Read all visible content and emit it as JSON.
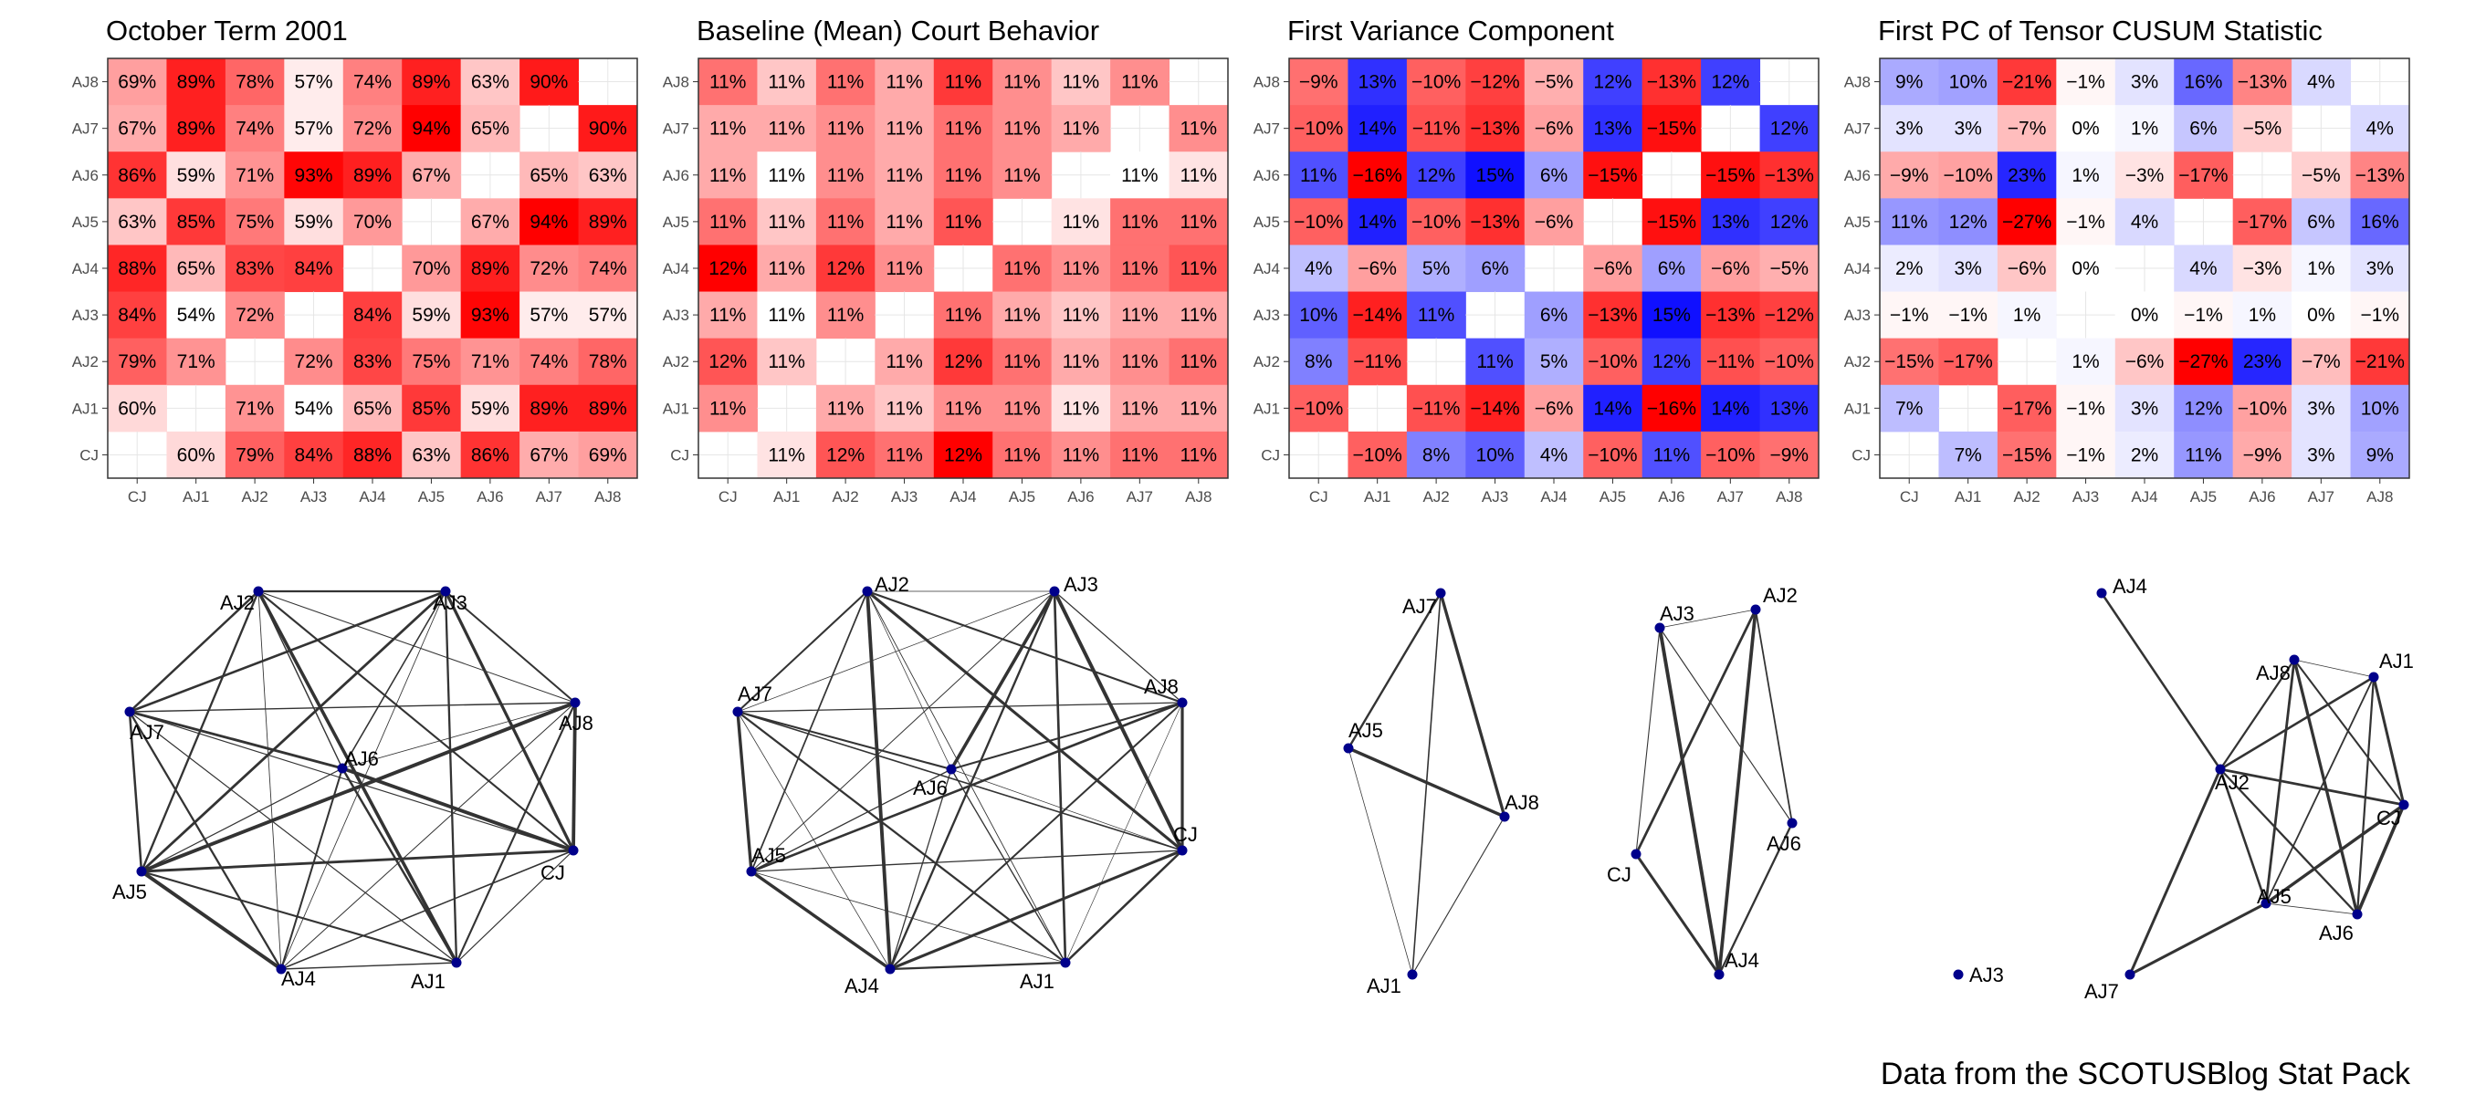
{
  "caption": "Data from the SCOTUSBlog Stat Pack",
  "colors": {
    "positive_high": "#ff0000",
    "negative_high": "#0000ff",
    "neutral": "#ffffff",
    "node": "#00008b",
    "edge": "#333333",
    "panel_border": "#333333",
    "grid": "#e6e6e6"
  },
  "chart_data": [
    {
      "type": "heatmap",
      "title": "October Term 2001",
      "color_scale": "white-red",
      "x_labels": [
        "CJ",
        "AJ1",
        "AJ2",
        "AJ3",
        "AJ4",
        "AJ5",
        "AJ6",
        "AJ7",
        "AJ8"
      ],
      "y_labels": [
        "AJ8",
        "AJ7",
        "AJ6",
        "AJ5",
        "AJ4",
        "AJ3",
        "AJ2",
        "AJ1",
        "CJ"
      ],
      "values": [
        [
          69,
          89,
          78,
          57,
          74,
          89,
          63,
          90,
          null
        ],
        [
          67,
          89,
          74,
          57,
          72,
          94,
          65,
          null,
          90
        ],
        [
          86,
          59,
          71,
          93,
          89,
          67,
          null,
          65,
          63
        ],
        [
          63,
          85,
          75,
          59,
          70,
          null,
          67,
          94,
          89
        ],
        [
          88,
          65,
          83,
          84,
          null,
          70,
          89,
          72,
          74
        ],
        [
          84,
          54,
          72,
          null,
          84,
          59,
          93,
          57,
          57
        ],
        [
          79,
          71,
          null,
          72,
          83,
          75,
          71,
          74,
          78
        ],
        [
          60,
          null,
          71,
          54,
          65,
          85,
          59,
          89,
          89
        ],
        [
          null,
          60,
          79,
          84,
          88,
          63,
          86,
          67,
          69
        ]
      ],
      "labels": [
        [
          "69%",
          "89%",
          "78%",
          "57%",
          "74%",
          "89%",
          "63%",
          "90%",
          ""
        ],
        [
          "67%",
          "89%",
          "74%",
          "57%",
          "72%",
          "94%",
          "65%",
          "",
          "90%"
        ],
        [
          "86%",
          "59%",
          "71%",
          "93%",
          "89%",
          "67%",
          "",
          "65%",
          "63%"
        ],
        [
          "63%",
          "85%",
          "75%",
          "59%",
          "70%",
          "",
          "67%",
          "94%",
          "89%"
        ],
        [
          "88%",
          "65%",
          "83%",
          "84%",
          "",
          "70%",
          "89%",
          "72%",
          "74%"
        ],
        [
          "84%",
          "54%",
          "72%",
          "",
          "84%",
          "59%",
          "93%",
          "57%",
          "57%"
        ],
        [
          "79%",
          "71%",
          "",
          "72%",
          "83%",
          "75%",
          "71%",
          "74%",
          "78%"
        ],
        [
          "60%",
          "",
          "71%",
          "54%",
          "65%",
          "85%",
          "59%",
          "89%",
          "89%"
        ],
        [
          "",
          "60%",
          "79%",
          "84%",
          "88%",
          "63%",
          "86%",
          "67%",
          "69%"
        ]
      ]
    },
    {
      "type": "heatmap",
      "title": "Baseline (Mean) Court Behavior",
      "color_scale": "white-red",
      "x_labels": [
        "CJ",
        "AJ1",
        "AJ2",
        "AJ3",
        "AJ4",
        "AJ5",
        "AJ6",
        "AJ7",
        "AJ8"
      ],
      "y_labels": [
        "AJ8",
        "AJ7",
        "AJ6",
        "AJ5",
        "AJ4",
        "AJ3",
        "AJ2",
        "AJ1",
        "CJ"
      ],
      "values": [
        [
          0.6,
          0.3,
          0.6,
          0.4,
          0.8,
          0.5,
          0.3,
          0.5,
          null
        ],
        [
          0.4,
          0.4,
          0.5,
          0.4,
          0.6,
          0.5,
          0.4,
          null,
          0.5
        ],
        [
          0.4,
          0.1,
          0.5,
          0.4,
          0.6,
          0.5,
          null,
          0.1,
          0.2
        ],
        [
          0.6,
          0.3,
          0.6,
          0.4,
          0.7,
          null,
          0.2,
          0.6,
          0.6
        ],
        [
          1.0,
          0.4,
          0.8,
          0.5,
          null,
          0.6,
          0.5,
          0.6,
          0.7
        ],
        [
          0.4,
          0.1,
          0.5,
          null,
          0.6,
          0.4,
          0.3,
          0.4,
          0.4
        ],
        [
          0.7,
          0.3,
          null,
          0.4,
          0.8,
          0.6,
          0.4,
          0.5,
          0.6
        ],
        [
          0.5,
          null,
          0.4,
          0.3,
          0.5,
          0.5,
          0.2,
          0.4,
          0.4
        ],
        [
          null,
          0.2,
          0.7,
          0.6,
          1.0,
          0.6,
          0.5,
          0.6,
          0.6
        ]
      ],
      "labels": [
        [
          "11%",
          "11%",
          "11%",
          "11%",
          "11%",
          "11%",
          "11%",
          "11%",
          ""
        ],
        [
          "11%",
          "11%",
          "11%",
          "11%",
          "11%",
          "11%",
          "11%",
          "",
          "11%"
        ],
        [
          "11%",
          "11%",
          "11%",
          "11%",
          "11%",
          "11%",
          "",
          "11%",
          "11%"
        ],
        [
          "11%",
          "11%",
          "11%",
          "11%",
          "11%",
          "",
          "11%",
          "11%",
          "11%"
        ],
        [
          "12%",
          "11%",
          "12%",
          "11%",
          "",
          "11%",
          "11%",
          "11%",
          "11%"
        ],
        [
          "11%",
          "11%",
          "11%",
          "",
          "11%",
          "11%",
          "11%",
          "11%",
          "11%"
        ],
        [
          "12%",
          "11%",
          "",
          "11%",
          "12%",
          "11%",
          "11%",
          "11%",
          "11%"
        ],
        [
          "11%",
          "",
          "11%",
          "11%",
          "11%",
          "11%",
          "11%",
          "11%",
          "11%"
        ],
        [
          "",
          "11%",
          "12%",
          "11%",
          "12%",
          "11%",
          "11%",
          "11%",
          "11%"
        ]
      ]
    },
    {
      "type": "heatmap",
      "title": "First Variance Component",
      "color_scale": "blue-white-red",
      "x_labels": [
        "CJ",
        "AJ1",
        "AJ2",
        "AJ3",
        "AJ4",
        "AJ5",
        "AJ6",
        "AJ7",
        "AJ8"
      ],
      "y_labels": [
        "AJ8",
        "AJ7",
        "AJ6",
        "AJ5",
        "AJ4",
        "AJ3",
        "AJ2",
        "AJ1",
        "CJ"
      ],
      "values": [
        [
          -9,
          13,
          -10,
          -12,
          -5,
          12,
          -13,
          12,
          null
        ],
        [
          -10,
          14,
          -11,
          -13,
          -6,
          13,
          -15,
          null,
          12
        ],
        [
          11,
          -16,
          12,
          15,
          6,
          -15,
          null,
          -15,
          -13
        ],
        [
          -10,
          14,
          -10,
          -13,
          -6,
          null,
          -15,
          13,
          12
        ],
        [
          4,
          -6,
          5,
          6,
          null,
          -6,
          6,
          -6,
          -5
        ],
        [
          10,
          -14,
          11,
          null,
          6,
          -13,
          15,
          -13,
          -12
        ],
        [
          8,
          -11,
          null,
          11,
          5,
          -10,
          12,
          -11,
          -10
        ],
        [
          -10,
          null,
          -11,
          -14,
          -6,
          14,
          -16,
          14,
          13
        ],
        [
          null,
          -10,
          8,
          10,
          4,
          -10,
          11,
          -10,
          -9
        ]
      ],
      "labels": [
        [
          "−9%",
          "13%",
          "−10%",
          "−12%",
          "−5%",
          "12%",
          "−13%",
          "12%",
          ""
        ],
        [
          "−10%",
          "14%",
          "−11%",
          "−13%",
          "−6%",
          "13%",
          "−15%",
          "",
          "12%"
        ],
        [
          "11%",
          "−16%",
          "12%",
          "15%",
          "6%",
          "−15%",
          "",
          "−15%",
          "−13%"
        ],
        [
          "−10%",
          "14%",
          "−10%",
          "−13%",
          "−6%",
          "",
          "−15%",
          "13%",
          "12%"
        ],
        [
          "4%",
          "−6%",
          "5%",
          "6%",
          "",
          "−6%",
          "6%",
          "−6%",
          "−5%"
        ],
        [
          "10%",
          "−14%",
          "11%",
          "",
          "6%",
          "−13%",
          "15%",
          "−13%",
          "−12%"
        ],
        [
          "8%",
          "−11%",
          "",
          "11%",
          "5%",
          "−10%",
          "12%",
          "−11%",
          "−10%"
        ],
        [
          "−10%",
          "",
          "−11%",
          "−14%",
          "−6%",
          "14%",
          "−16%",
          "14%",
          "13%"
        ],
        [
          "",
          "−10%",
          "8%",
          "10%",
          "4%",
          "−10%",
          "11%",
          "−10%",
          "−9%"
        ]
      ]
    },
    {
      "type": "heatmap",
      "title": "First PC of Tensor CUSUM Statistic",
      "color_scale": "blue-white-red",
      "x_labels": [
        "CJ",
        "AJ1",
        "AJ2",
        "AJ3",
        "AJ4",
        "AJ5",
        "AJ6",
        "AJ7",
        "AJ8"
      ],
      "y_labels": [
        "AJ8",
        "AJ7",
        "AJ6",
        "AJ5",
        "AJ4",
        "AJ3",
        "AJ2",
        "AJ1",
        "CJ"
      ],
      "values": [
        [
          9,
          10,
          -21,
          -1,
          3,
          16,
          -13,
          4,
          null
        ],
        [
          3,
          3,
          -7,
          0,
          1,
          6,
          -5,
          null,
          4
        ],
        [
          -9,
          -10,
          23,
          1,
          -3,
          -17,
          null,
          -5,
          -13
        ],
        [
          11,
          12,
          -27,
          -1,
          4,
          null,
          -17,
          6,
          16
        ],
        [
          2,
          3,
          -6,
          0,
          null,
          4,
          -3,
          1,
          3
        ],
        [
          -1,
          -1,
          1,
          null,
          0,
          -1,
          1,
          0,
          -1
        ],
        [
          -15,
          -17,
          null,
          1,
          -6,
          -27,
          23,
          -7,
          -21
        ],
        [
          7,
          null,
          -17,
          -1,
          3,
          12,
          -10,
          3,
          10
        ],
        [
          null,
          7,
          -15,
          -1,
          2,
          11,
          -9,
          3,
          9
        ]
      ],
      "labels": [
        [
          "9%",
          "10%",
          "−21%",
          "−1%",
          "3%",
          "16%",
          "−13%",
          "4%",
          ""
        ],
        [
          "3%",
          "3%",
          "−7%",
          "0%",
          "1%",
          "6%",
          "−5%",
          "",
          "4%"
        ],
        [
          "−9%",
          "−10%",
          "23%",
          "1%",
          "−3%",
          "−17%",
          "",
          "−5%",
          "−13%"
        ],
        [
          "11%",
          "12%",
          "−27%",
          "−1%",
          "4%",
          "",
          "−17%",
          "6%",
          "16%"
        ],
        [
          "2%",
          "3%",
          "−6%",
          "0%",
          "",
          "4%",
          "−3%",
          "1%",
          "3%"
        ],
        [
          "−1%",
          "−1%",
          "1%",
          "",
          "0%",
          "−1%",
          "1%",
          "0%",
          "−1%"
        ],
        [
          "−15%",
          "−17%",
          "",
          "1%",
          "−6%",
          "−27%",
          "23%",
          "−7%",
          "−21%"
        ],
        [
          "7%",
          "",
          "−17%",
          "−1%",
          "3%",
          "12%",
          "−10%",
          "3%",
          "10%"
        ],
        [
          "",
          "7%",
          "−15%",
          "−1%",
          "2%",
          "11%",
          "−9%",
          "3%",
          "9%"
        ]
      ]
    }
  ]
}
